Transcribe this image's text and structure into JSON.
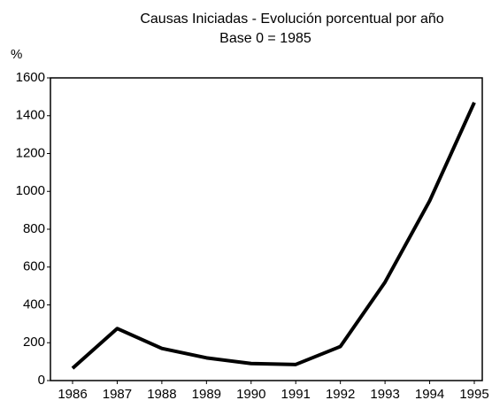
{
  "chart_data": {
    "type": "line",
    "title": "Causas Iniciadas - Evolución porcentual por año",
    "subtitle": "Base 0 = 1985",
    "y_label": "%",
    "categories": [
      "1986",
      "1987",
      "1988",
      "1989",
      "1990",
      "1991",
      "1992",
      "1993",
      "1994",
      "1995"
    ],
    "values": [
      65,
      275,
      170,
      120,
      90,
      85,
      180,
      520,
      950,
      1470
    ],
    "color": "#000000",
    "ylim": [
      0,
      1600
    ],
    "yticks": [
      0,
      200,
      400,
      600,
      800,
      1000,
      1200,
      1400,
      1600
    ],
    "grid": false
  }
}
